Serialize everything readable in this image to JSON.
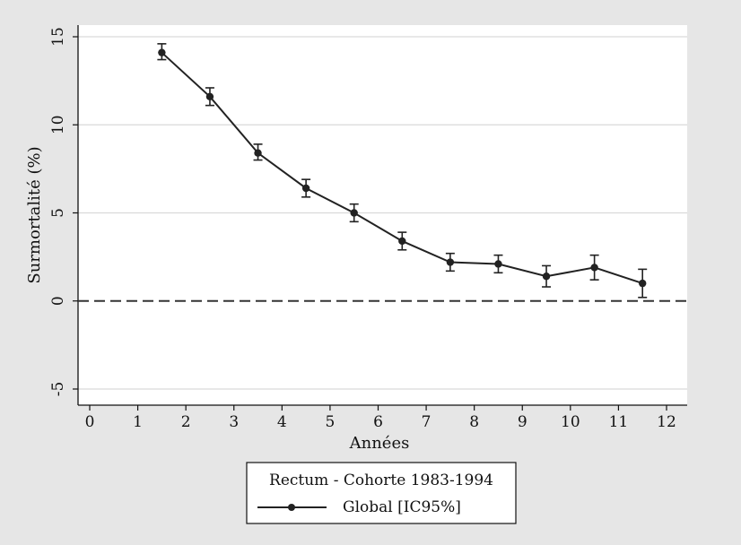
{
  "chart_data": {
    "type": "line",
    "title": "",
    "xlabel": "Années",
    "ylabel": "Surmortalité (%)",
    "xlim": [
      0,
      12
    ],
    "ylim": [
      -5,
      15
    ],
    "x_ticks": [
      "0",
      "1",
      "2",
      "3",
      "4",
      "5",
      "6",
      "7",
      "8",
      "9",
      "10",
      "11",
      "12"
    ],
    "y_ticks": [
      "-5",
      "0",
      "5",
      "10",
      "15"
    ],
    "grid": "horizontal",
    "reference_line": {
      "y": 0,
      "style": "dashed"
    },
    "legend": {
      "title": "Rectum - Cohorte 1983-1994",
      "placement": "bottom-center"
    },
    "series": [
      {
        "name": "Global [IC95%]",
        "x": [
          1.5,
          2.5,
          3.5,
          4.5,
          5.5,
          6.5,
          7.5,
          8.5,
          9.5,
          10.5,
          11.5
        ],
        "y": [
          14.1,
          11.6,
          8.4,
          6.4,
          5.0,
          3.4,
          2.2,
          2.1,
          1.4,
          1.9,
          1.0
        ],
        "ci_low": [
          13.7,
          11.1,
          8.0,
          5.9,
          4.5,
          2.9,
          1.7,
          1.6,
          0.8,
          1.2,
          0.2
        ],
        "ci_high": [
          14.6,
          12.1,
          8.9,
          6.9,
          5.5,
          3.9,
          2.7,
          2.6,
          2.0,
          2.6,
          1.8
        ],
        "color": "#222222"
      }
    ]
  }
}
